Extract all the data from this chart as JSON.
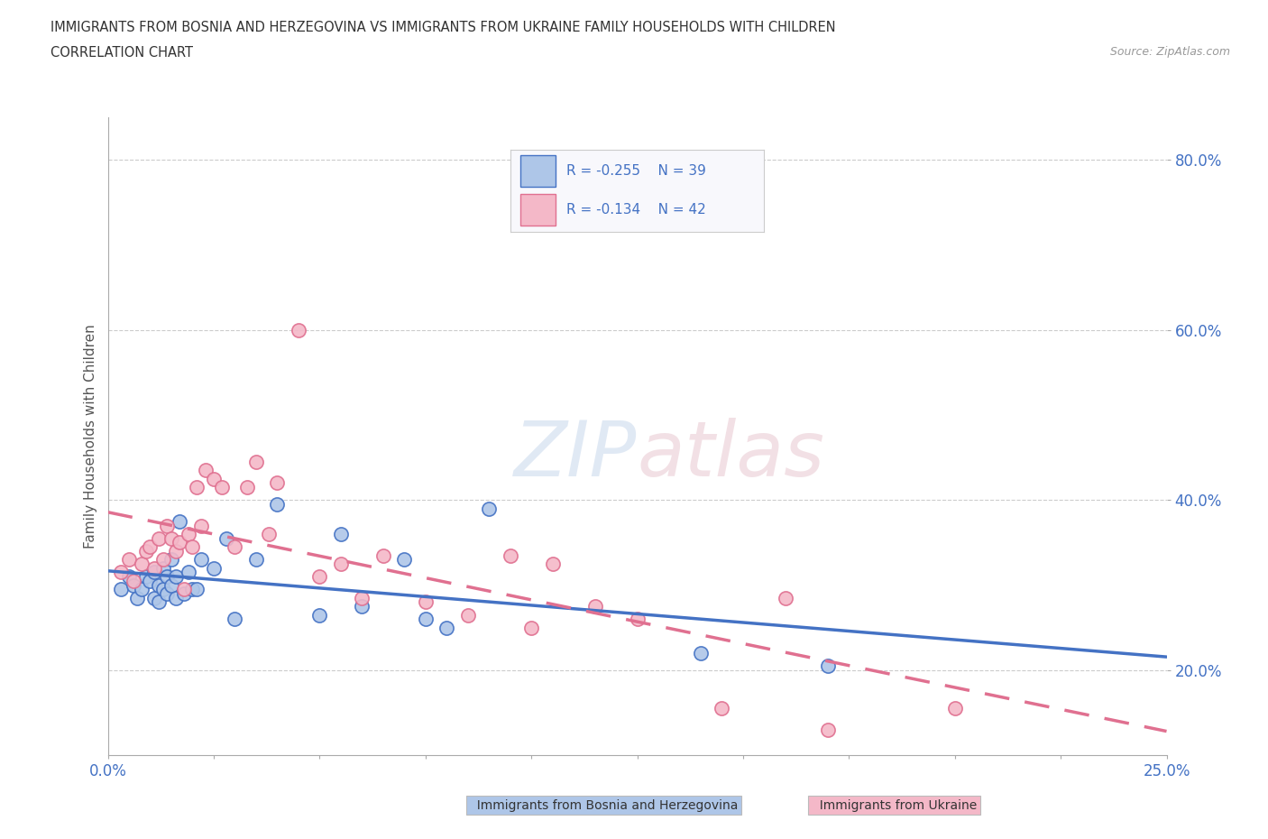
{
  "title_line1": "IMMIGRANTS FROM BOSNIA AND HERZEGOVINA VS IMMIGRANTS FROM UKRAINE FAMILY HOUSEHOLDS WITH CHILDREN",
  "title_line2": "CORRELATION CHART",
  "source_text": "Source: ZipAtlas.com",
  "ylabel": "Family Households with Children",
  "xlim": [
    0.0,
    0.25
  ],
  "ylim": [
    0.1,
    0.85
  ],
  "yticks": [
    0.2,
    0.4,
    0.6,
    0.8
  ],
  "ytick_labels": [
    "20.0%",
    "40.0%",
    "60.0%",
    "80.0%"
  ],
  "xticks": [
    0.0,
    0.025,
    0.05,
    0.075,
    0.1,
    0.125,
    0.15,
    0.175,
    0.2,
    0.225,
    0.25
  ],
  "color_bosnia": "#aec6e8",
  "color_ukraine": "#f4b8c8",
  "line_color_bosnia": "#4472c4",
  "line_color_ukraine": "#e07090",
  "watermark": "ZIPatlas",
  "legend_r_bosnia": "-0.255",
  "legend_n_bosnia": "39",
  "legend_r_ukraine": "-0.134",
  "legend_n_ukraine": "42",
  "bosnia_x": [
    0.003,
    0.005,
    0.006,
    0.007,
    0.008,
    0.009,
    0.01,
    0.011,
    0.011,
    0.012,
    0.012,
    0.013,
    0.013,
    0.014,
    0.014,
    0.015,
    0.015,
    0.016,
    0.016,
    0.017,
    0.018,
    0.019,
    0.02,
    0.021,
    0.022,
    0.025,
    0.028,
    0.03,
    0.035,
    0.04,
    0.05,
    0.055,
    0.06,
    0.07,
    0.075,
    0.08,
    0.09,
    0.14,
    0.17
  ],
  "bosnia_y": [
    0.295,
    0.31,
    0.3,
    0.285,
    0.295,
    0.31,
    0.305,
    0.285,
    0.315,
    0.28,
    0.3,
    0.295,
    0.32,
    0.29,
    0.31,
    0.3,
    0.33,
    0.285,
    0.31,
    0.375,
    0.29,
    0.315,
    0.295,
    0.295,
    0.33,
    0.32,
    0.355,
    0.26,
    0.33,
    0.395,
    0.265,
    0.36,
    0.275,
    0.33,
    0.26,
    0.25,
    0.39,
    0.22,
    0.205
  ],
  "ukraine_x": [
    0.003,
    0.005,
    0.006,
    0.008,
    0.009,
    0.01,
    0.011,
    0.012,
    0.013,
    0.014,
    0.015,
    0.016,
    0.017,
    0.018,
    0.019,
    0.02,
    0.021,
    0.022,
    0.023,
    0.025,
    0.027,
    0.03,
    0.033,
    0.035,
    0.038,
    0.04,
    0.045,
    0.05,
    0.055,
    0.06,
    0.065,
    0.075,
    0.085,
    0.095,
    0.1,
    0.105,
    0.115,
    0.125,
    0.145,
    0.16,
    0.17,
    0.2
  ],
  "ukraine_y": [
    0.315,
    0.33,
    0.305,
    0.325,
    0.34,
    0.345,
    0.32,
    0.355,
    0.33,
    0.37,
    0.355,
    0.34,
    0.35,
    0.295,
    0.36,
    0.345,
    0.415,
    0.37,
    0.435,
    0.425,
    0.415,
    0.345,
    0.415,
    0.445,
    0.36,
    0.42,
    0.6,
    0.31,
    0.325,
    0.285,
    0.335,
    0.28,
    0.265,
    0.335,
    0.25,
    0.325,
    0.275,
    0.26,
    0.155,
    0.285,
    0.13,
    0.155
  ]
}
